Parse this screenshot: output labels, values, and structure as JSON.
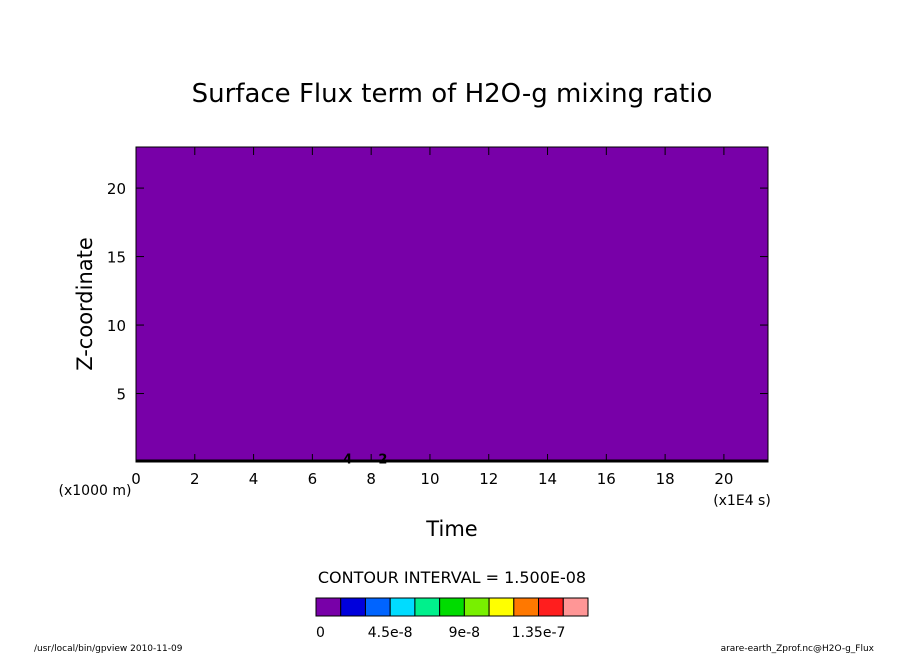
{
  "chart_data": {
    "type": "heatmap",
    "title": "Surface Flux term of H2O-g mixing ratio",
    "xlabel": "Time",
    "ylabel": "Z-coordinate",
    "x_scale_note": "(x1E4 s)",
    "y_scale_note": "(x1000 m)",
    "xlim": [
      0,
      21.5
    ],
    "ylim": [
      0,
      23
    ],
    "xticks": [
      "0",
      "2",
      "4",
      "6",
      "8",
      "10",
      "12",
      "14",
      "16",
      "18",
      "20"
    ],
    "yticks": [
      "5",
      "10",
      "15",
      "20"
    ],
    "contour_interval": "CONTOUR INTERVAL = 1.500E-08",
    "field_color": "#7800a8",
    "contour_line_labels": [
      {
        "x": 7.2,
        "y": 0.2,
        "text": "4"
      },
      {
        "x": 8.4,
        "y": 0.2,
        "text": "2"
      }
    ],
    "colorbar": {
      "colors": [
        "#7800a8",
        "#0000dc",
        "#0064ff",
        "#00dcff",
        "#00f08c",
        "#00dc00",
        "#78f000",
        "#ffff00",
        "#ff7800",
        "#ff1e1e",
        "#ff9696"
      ],
      "labels": [
        "0",
        "4.5e-8",
        "9e-8",
        "1.35e-7"
      ],
      "label_positions": [
        0,
        3,
        6,
        9
      ]
    }
  },
  "footer": {
    "left": "/usr/local/bin/gpview  2010-11-09",
    "right": "arare-earth_Zprof.nc@H2O-g_Flux"
  }
}
